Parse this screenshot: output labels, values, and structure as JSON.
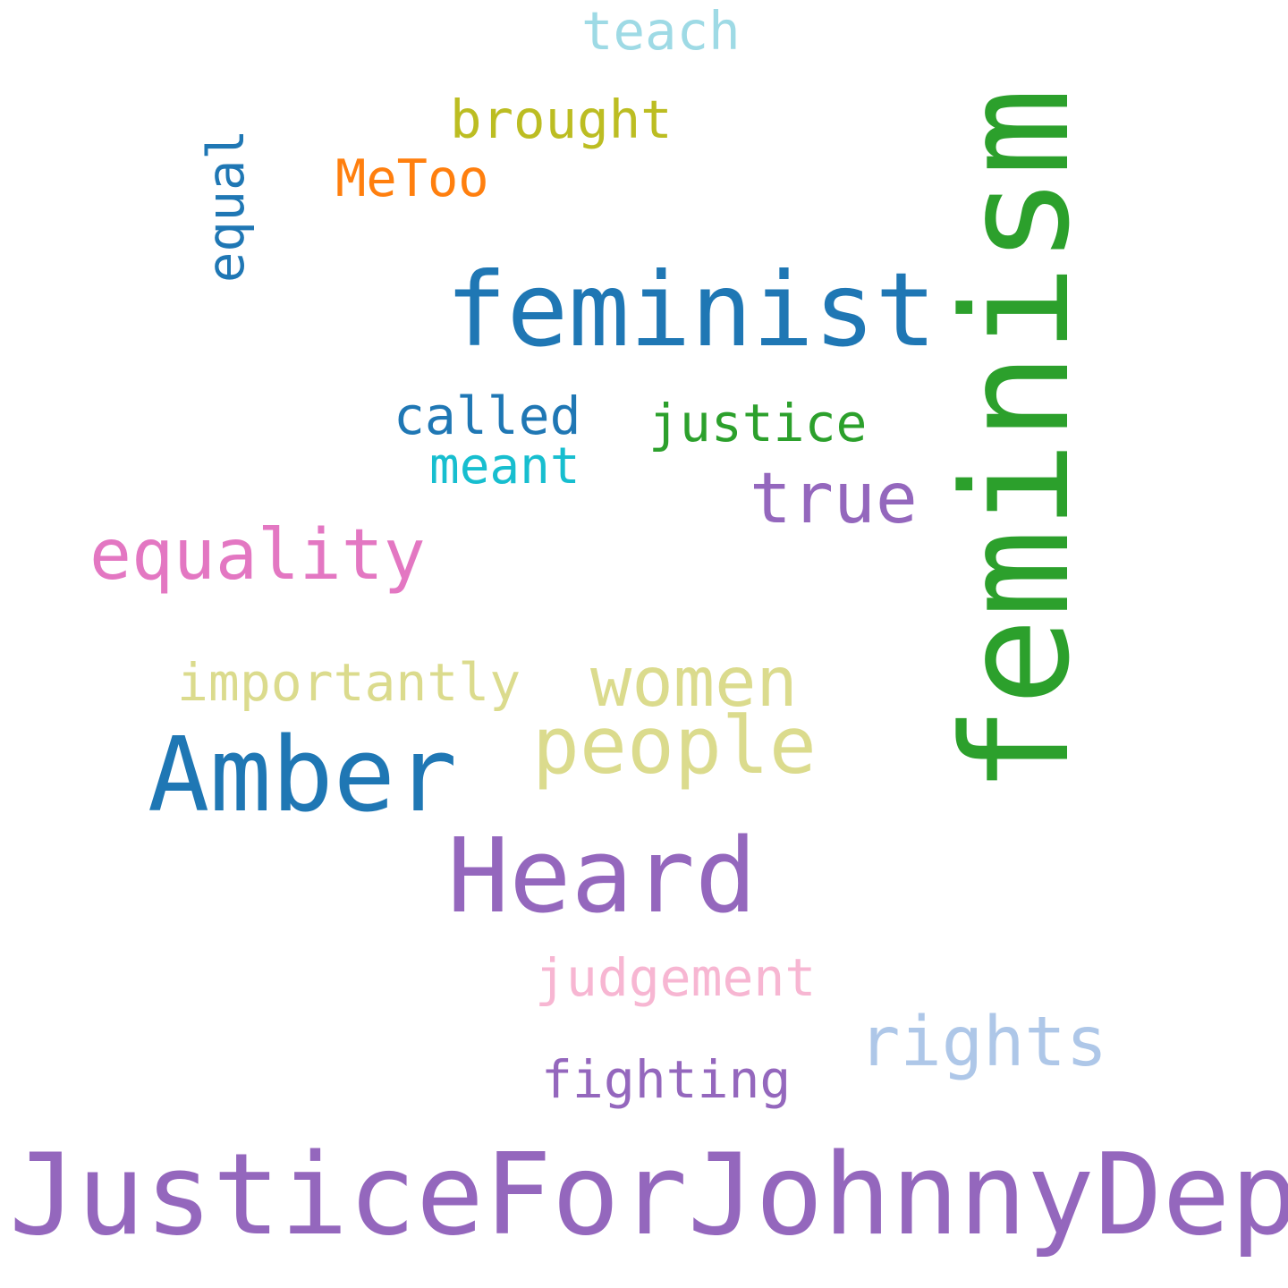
{
  "words": {
    "feminism": {
      "text": "feminism",
      "color": "#2ca02c"
    },
    "feminist": {
      "text": "feminist",
      "color": "#1f77b4"
    },
    "JusticeForJohnnyDepp": {
      "text": "JusticeForJohnnyDepp",
      "color": "#9467bd"
    },
    "Amber": {
      "text": "Amber",
      "color": "#1f77b4"
    },
    "Heard": {
      "text": "Heard",
      "color": "#9467bd"
    },
    "people": {
      "text": "people",
      "color": "#dbdb8d"
    },
    "women": {
      "text": "women",
      "color": "#dbdb8d"
    },
    "equality": {
      "text": "equality",
      "color": "#e377c2"
    },
    "true": {
      "text": "true",
      "color": "#9467bd"
    },
    "rights": {
      "text": "rights",
      "color": "#aec7e8"
    },
    "teach": {
      "text": "teach",
      "color": "#9edae5"
    },
    "brought": {
      "text": "brought",
      "color": "#bcbd22"
    },
    "MeToo": {
      "text": "MeToo",
      "color": "#ff7f0e"
    },
    "equal": {
      "text": "equal",
      "color": "#1f77b4"
    },
    "called": {
      "text": "called",
      "color": "#1f77b4"
    },
    "justice": {
      "text": "justice",
      "color": "#2ca02c"
    },
    "meant": {
      "text": "meant",
      "color": "#17becf"
    },
    "importantly": {
      "text": "importantly",
      "color": "#dbdb8d"
    },
    "judgement": {
      "text": "judgement",
      "color": "#f7b6d2"
    },
    "fighting": {
      "text": "fighting",
      "color": "#9467bd"
    }
  }
}
